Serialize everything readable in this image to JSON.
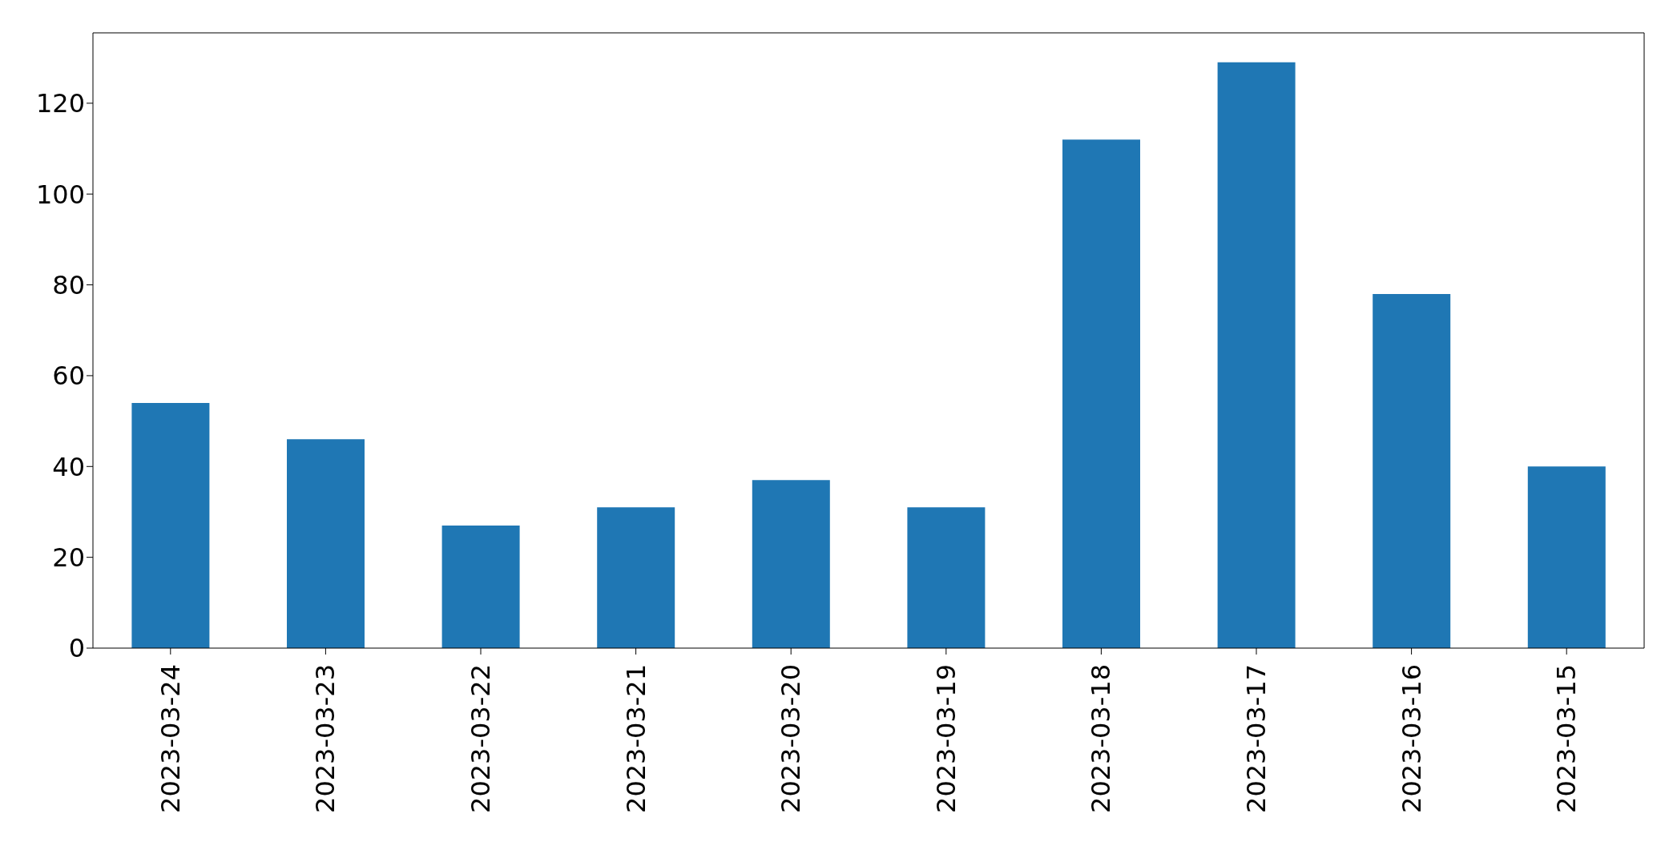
{
  "chart_data": {
    "type": "bar",
    "categories": [
      "2023-03-24",
      "2023-03-23",
      "2023-03-22",
      "2023-03-21",
      "2023-03-20",
      "2023-03-19",
      "2023-03-18",
      "2023-03-17",
      "2023-03-16",
      "2023-03-15"
    ],
    "values": [
      54,
      46,
      27,
      31,
      37,
      31,
      112,
      129,
      78,
      40
    ],
    "color": "#1f77b4",
    "ylim": [
      0,
      135.5
    ],
    "yticks": [
      0,
      20,
      40,
      60,
      80,
      100,
      120
    ],
    "grid": false
  }
}
